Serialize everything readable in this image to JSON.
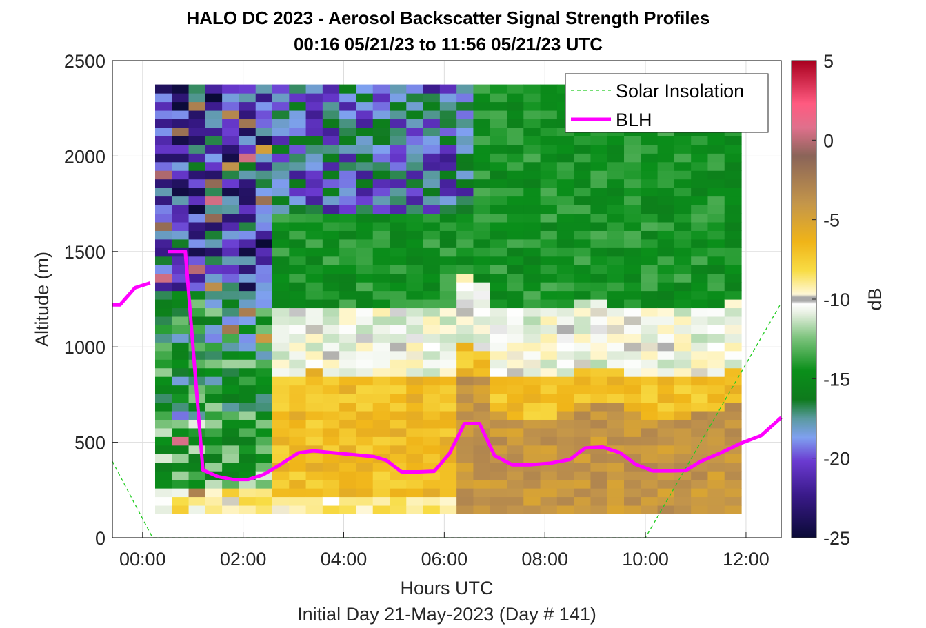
{
  "chart_data": {
    "type": "heatmap",
    "title": "HALO DC 2023 - Aerosol Backscatter Signal Strength Profiles",
    "subtitle": "00:16 05/21/23 to 11:56 05/21/23  UTC",
    "xlabel": "Hours UTC",
    "xlabel2": "Initial Day 21-May-2023 (Day # 141)",
    "ylabel": "Altitude (m)",
    "colorbar_label": "dB",
    "xlim": [
      -0.6,
      12.7
    ],
    "ylim": [
      0,
      2500
    ],
    "x_ticks": [
      0,
      2,
      4,
      6,
      8,
      10,
      12
    ],
    "x_tick_labels": [
      "00:00",
      "02:00",
      "04:00",
      "06:00",
      "08:00",
      "10:00",
      "12:00"
    ],
    "y_ticks": [
      0,
      500,
      1000,
      1500,
      2000,
      2500
    ],
    "y_tick_labels": [
      "0",
      "500",
      "1000",
      "1500",
      "2000",
      "2500"
    ],
    "clim": [
      -25,
      5
    ],
    "colorbar_ticks": [
      5,
      0,
      -5,
      -10,
      -15,
      -20,
      -25
    ],
    "colorbar_tick_labels": [
      "5",
      "0",
      "-5",
      "-10",
      "-15",
      "-20",
      "-25"
    ],
    "grid": true,
    "legend_position": "top-right",
    "series": [
      {
        "name": "Solar Insolation",
        "style": "dashed",
        "color": "#22cc22",
        "points": [
          [
            -0.6,
            400
          ],
          [
            0.2,
            0
          ],
          [
            10.0,
            0
          ],
          [
            12.7,
            1230
          ]
        ]
      },
      {
        "name": "BLH",
        "style": "solid",
        "color": "#ff00ff",
        "segments": [
          [
            [
              -0.6,
              1220
            ],
            [
              -0.45,
              1220
            ],
            [
              -0.15,
              1310
            ],
            [
              0.15,
              1335
            ]
          ],
          [
            [
              0.5,
              1500
            ],
            [
              0.85,
              1500
            ],
            [
              1.2,
              355
            ],
            [
              1.5,
              320
            ],
            [
              1.8,
              305
            ],
            [
              2.1,
              305
            ],
            [
              2.4,
              330
            ],
            [
              2.75,
              385
            ],
            [
              3.1,
              445
            ],
            [
              3.4,
              455
            ],
            [
              3.8,
              445
            ],
            [
              4.2,
              435
            ],
            [
              4.6,
              425
            ],
            [
              4.85,
              405
            ],
            [
              5.15,
              345
            ],
            [
              5.5,
              345
            ],
            [
              5.8,
              348
            ],
            [
              6.1,
              440
            ],
            [
              6.4,
              598
            ],
            [
              6.7,
              598
            ],
            [
              7.0,
              430
            ],
            [
              7.35,
              382
            ],
            [
              7.7,
              382
            ],
            [
              8.1,
              390
            ],
            [
              8.5,
              410
            ],
            [
              8.8,
              470
            ],
            [
              9.15,
              475
            ],
            [
              9.5,
              445
            ],
            [
              9.8,
              385
            ],
            [
              10.15,
              350
            ],
            [
              10.5,
              350
            ],
            [
              10.8,
              352
            ],
            [
              11.1,
              400
            ],
            [
              11.5,
              445
            ],
            [
              11.9,
              495
            ],
            [
              12.3,
              535
            ],
            [
              12.7,
              630
            ]
          ]
        ]
      }
    ],
    "heatmap_extent": {
      "x_start": 0.25,
      "x_step": 0.333,
      "columns": 35,
      "y_start": 125,
      "y_step": 45,
      "rows": 50
    }
  },
  "colors": {
    "background": "#ffffff",
    "axes_text": "#262626",
    "blh_line": "#ff00ff",
    "solar_line": "#22cc22",
    "grid": "#dddddd"
  }
}
